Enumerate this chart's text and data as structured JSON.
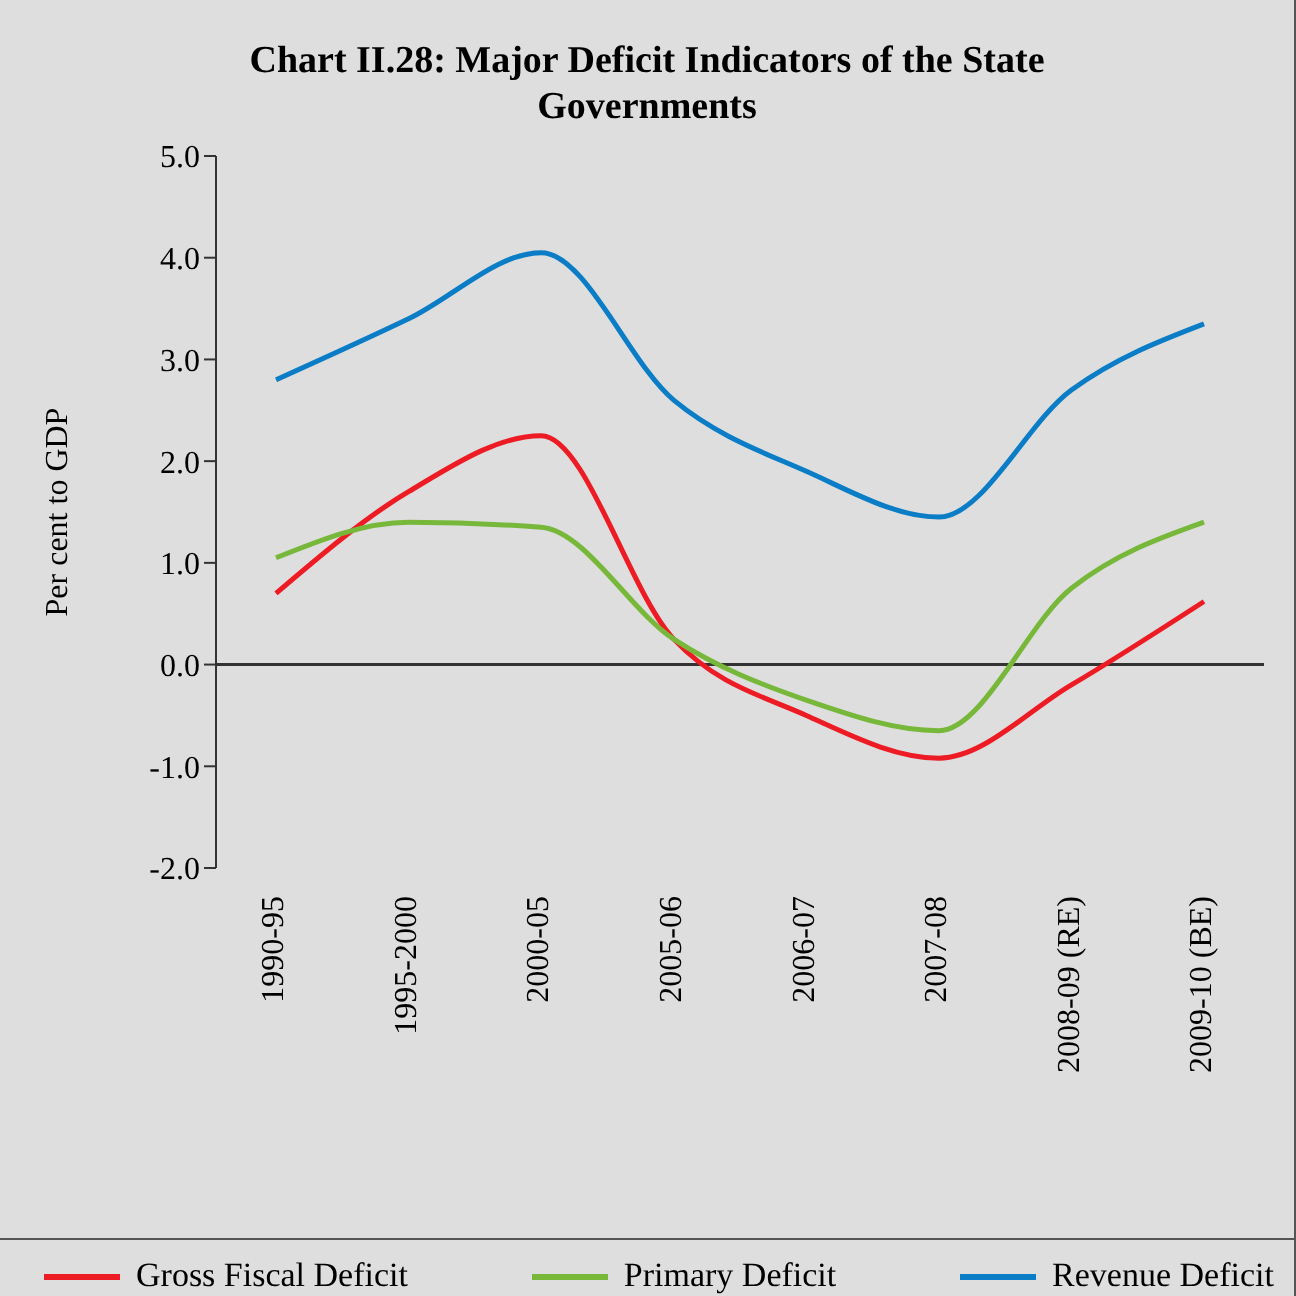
{
  "chart_data": {
    "type": "line",
    "title": "Chart II.28: Major Deficit Indicators of the State Governments",
    "ylabel": "Per cent to GDP",
    "categories": [
      "1990-95",
      "1995-2000",
      "2000-05",
      "2005-06",
      "2006-07",
      "2007-08",
      "2008-09 (RE)",
      "2009-10 (BE)"
    ],
    "series": [
      {
        "name": "Gross Fiscal Deficit",
        "color": "#ed1c24",
        "values": [
          0.7,
          1.7,
          2.25,
          0.25,
          -0.5,
          -0.92,
          -0.2,
          0.62
        ]
      },
      {
        "name": "Primary Deficit",
        "color": "#77b83a",
        "values": [
          1.05,
          1.4,
          1.35,
          0.25,
          -0.35,
          -0.65,
          0.75,
          1.4
        ]
      },
      {
        "name": "Revenue Deficit",
        "color": "#0a7dc6",
        "values": [
          2.8,
          3.4,
          4.05,
          2.6,
          1.9,
          1.45,
          2.7,
          3.35
        ]
      }
    ],
    "ylim": [
      -2,
      5
    ],
    "yticks": [
      {
        "value": -2,
        "label": "-2.0"
      },
      {
        "value": -1,
        "label": "-1.0"
      },
      {
        "value": 0,
        "label": "0.0"
      },
      {
        "value": 1,
        "label": "1.0"
      },
      {
        "value": 2,
        "label": "2.0"
      },
      {
        "value": 3,
        "label": "3.0"
      },
      {
        "value": 4,
        "label": "4.0"
      },
      {
        "value": 5,
        "label": "5.0"
      }
    ],
    "ref_lines": [
      {
        "axis": "y",
        "value": 0,
        "color": "#333333"
      }
    ],
    "grid": false,
    "legend": "bottom",
    "marker": "none",
    "line_style": "solid"
  }
}
